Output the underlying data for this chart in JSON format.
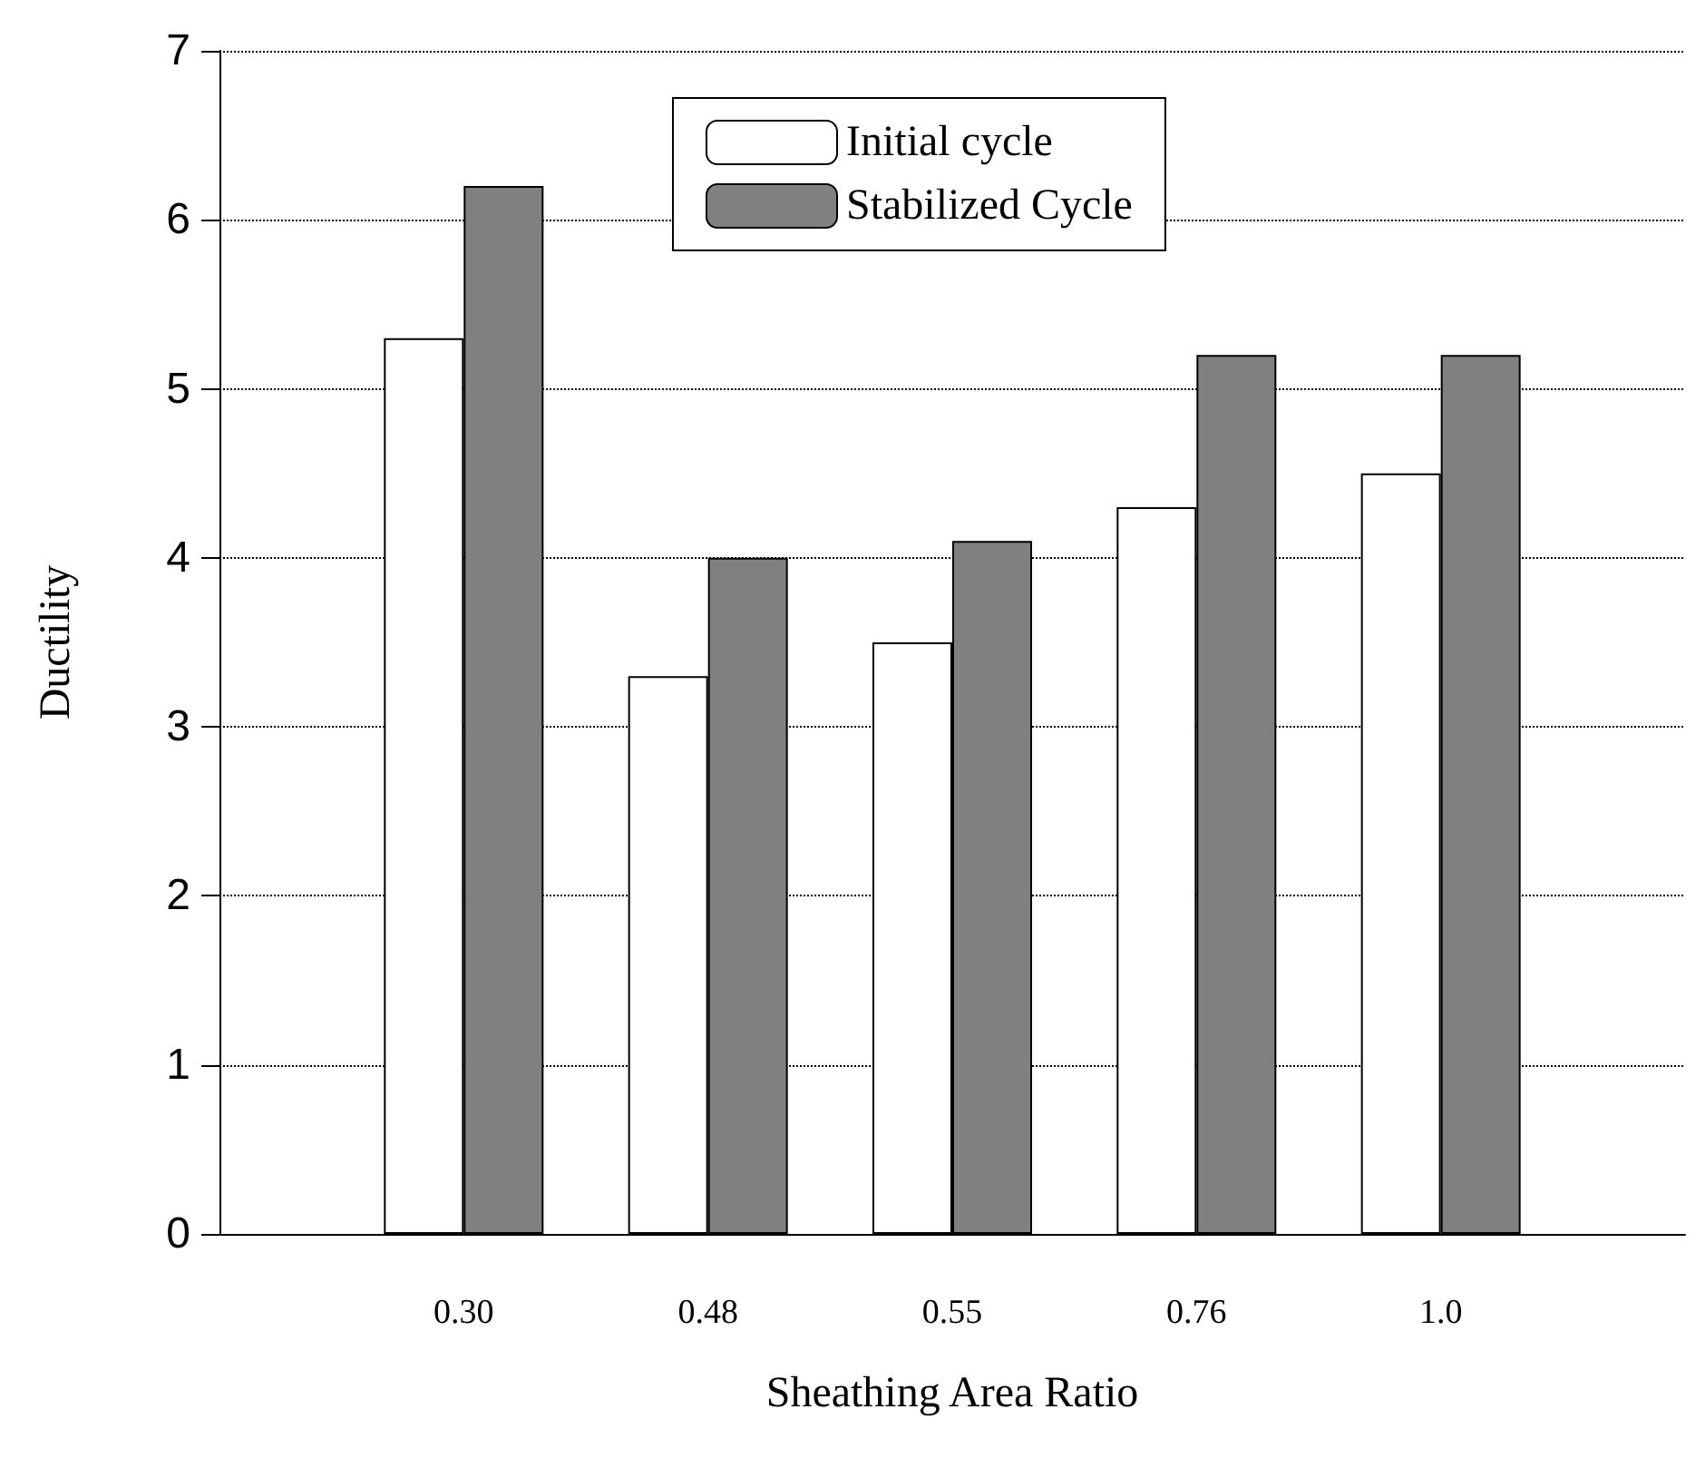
{
  "chart_data": {
    "type": "bar",
    "xlabel": "Sheathing Area Ratio",
    "ylabel": "Ductility",
    "categories": [
      "0.30",
      "0.48",
      "0.55",
      "0.76",
      "1.0"
    ],
    "series": [
      {
        "name": "Initial cycle",
        "color": "#ffffff",
        "values": [
          5.3,
          3.3,
          3.5,
          4.3,
          4.5
        ]
      },
      {
        "name": "Stabilized Cycle",
        "color": "#808080",
        "values": [
          6.2,
          4.0,
          4.1,
          5.2,
          5.2
        ]
      }
    ],
    "ylim": [
      0,
      7
    ],
    "yticks": [
      0,
      1,
      2,
      3,
      4,
      5,
      6,
      7
    ],
    "grid": "y",
    "legend": "top"
  }
}
